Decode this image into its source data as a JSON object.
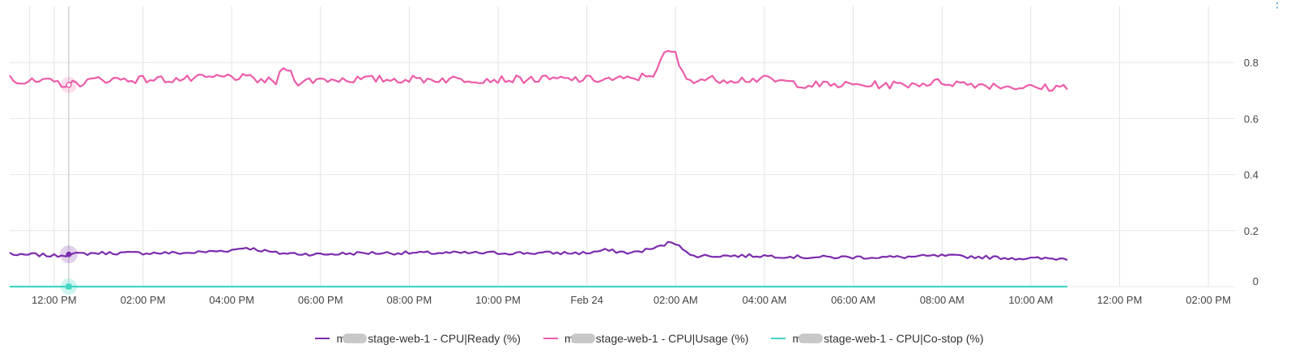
{
  "chart_data": {
    "type": "line",
    "x_tick_labels": [
      "12:00 PM",
      "02:00 PM",
      "04:00 PM",
      "06:00 PM",
      "08:00 PM",
      "10:00 PM",
      "Feb 24",
      "02:00 AM",
      "04:00 AM",
      "06:00 AM",
      "08:00 AM",
      "10:00 AM",
      "12:00 PM",
      "02:00 PM"
    ],
    "x_tick_hours": [
      0,
      2,
      4,
      6,
      8,
      10,
      12,
      14,
      16,
      18,
      20,
      22,
      24,
      26
    ],
    "xlim": [
      -1.0,
      26.6
    ],
    "ylim": [
      0,
      1.0
    ],
    "y_ticks": [
      0,
      0.2,
      0.4,
      0.6,
      0.8
    ],
    "y_tick_labels": [
      "0",
      "0.2",
      "0.4",
      "0.6",
      "0.8"
    ],
    "grid": true,
    "legend_position": "bottom",
    "cursor_hour": 0.33,
    "series": [
      {
        "name": "stage-web-1 - CPU|Ready (%)",
        "color": "#7b2cad",
        "anchors": [
          [
            -1.0,
            0.12
          ],
          [
            -0.8,
            0.11
          ],
          [
            -0.5,
            0.115
          ],
          [
            0,
            0.11
          ],
          [
            0.33,
            0.115
          ],
          [
            1,
            0.12
          ],
          [
            2,
            0.12
          ],
          [
            3,
            0.12
          ],
          [
            4,
            0.13
          ],
          [
            4.3,
            0.14
          ],
          [
            5,
            0.12
          ],
          [
            6,
            0.115
          ],
          [
            7,
            0.12
          ],
          [
            8,
            0.12
          ],
          [
            9,
            0.12
          ],
          [
            10,
            0.12
          ],
          [
            11,
            0.12
          ],
          [
            12,
            0.12
          ],
          [
            12.4,
            0.13
          ],
          [
            13,
            0.12
          ],
          [
            13.6,
            0.14
          ],
          [
            13.9,
            0.16
          ],
          [
            14.1,
            0.15
          ],
          [
            14.3,
            0.11
          ],
          [
            15,
            0.11
          ],
          [
            16,
            0.11
          ],
          [
            17,
            0.105
          ],
          [
            18,
            0.105
          ],
          [
            19,
            0.105
          ],
          [
            20,
            0.11
          ],
          [
            21,
            0.105
          ],
          [
            22,
            0.1
          ],
          [
            22.6,
            0.1
          ],
          [
            22.9,
            0.1
          ]
        ]
      },
      {
        "name": "stage-web-1 - CPU|Usage (%)",
        "color": "#ec5ca9",
        "anchors": [
          [
            -1.0,
            0.76
          ],
          [
            -0.8,
            0.73
          ],
          [
            0,
            0.73
          ],
          [
            0.33,
            0.72
          ],
          [
            1,
            0.74
          ],
          [
            2,
            0.74
          ],
          [
            3,
            0.74
          ],
          [
            4,
            0.75
          ],
          [
            4.5,
            0.74
          ],
          [
            5,
            0.73
          ],
          [
            5.2,
            0.79
          ],
          [
            5.5,
            0.73
          ],
          [
            6,
            0.74
          ],
          [
            7,
            0.74
          ],
          [
            8,
            0.74
          ],
          [
            9,
            0.74
          ],
          [
            10,
            0.74
          ],
          [
            11,
            0.74
          ],
          [
            12,
            0.74
          ],
          [
            13,
            0.74
          ],
          [
            13.5,
            0.76
          ],
          [
            13.8,
            0.84
          ],
          [
            14,
            0.83
          ],
          [
            14.2,
            0.74
          ],
          [
            15,
            0.74
          ],
          [
            16,
            0.74
          ],
          [
            17,
            0.72
          ],
          [
            18,
            0.72
          ],
          [
            19,
            0.72
          ],
          [
            20,
            0.73
          ],
          [
            21,
            0.72
          ],
          [
            22,
            0.71
          ],
          [
            22.6,
            0.71
          ],
          [
            22.9,
            0.72
          ]
        ]
      },
      {
        "name": "stage-web-1 - CPU|Co-stop (%)",
        "color": "#3fd6c3",
        "anchors": [
          [
            -1.0,
            0
          ],
          [
            22.9,
            0
          ]
        ]
      }
    ]
  },
  "legend": [
    {
      "prefix": "m",
      "suffix": "stage-web-1 - CPU|Ready (%)"
    },
    {
      "prefix": "m",
      "suffix": "stage-web-1 - CPU|Usage (%)"
    },
    {
      "prefix": "m",
      "suffix": "stage-web-1 - CPU|Co-stop (%)"
    }
  ],
  "more_icon": "vertical-ellipsis-icon"
}
